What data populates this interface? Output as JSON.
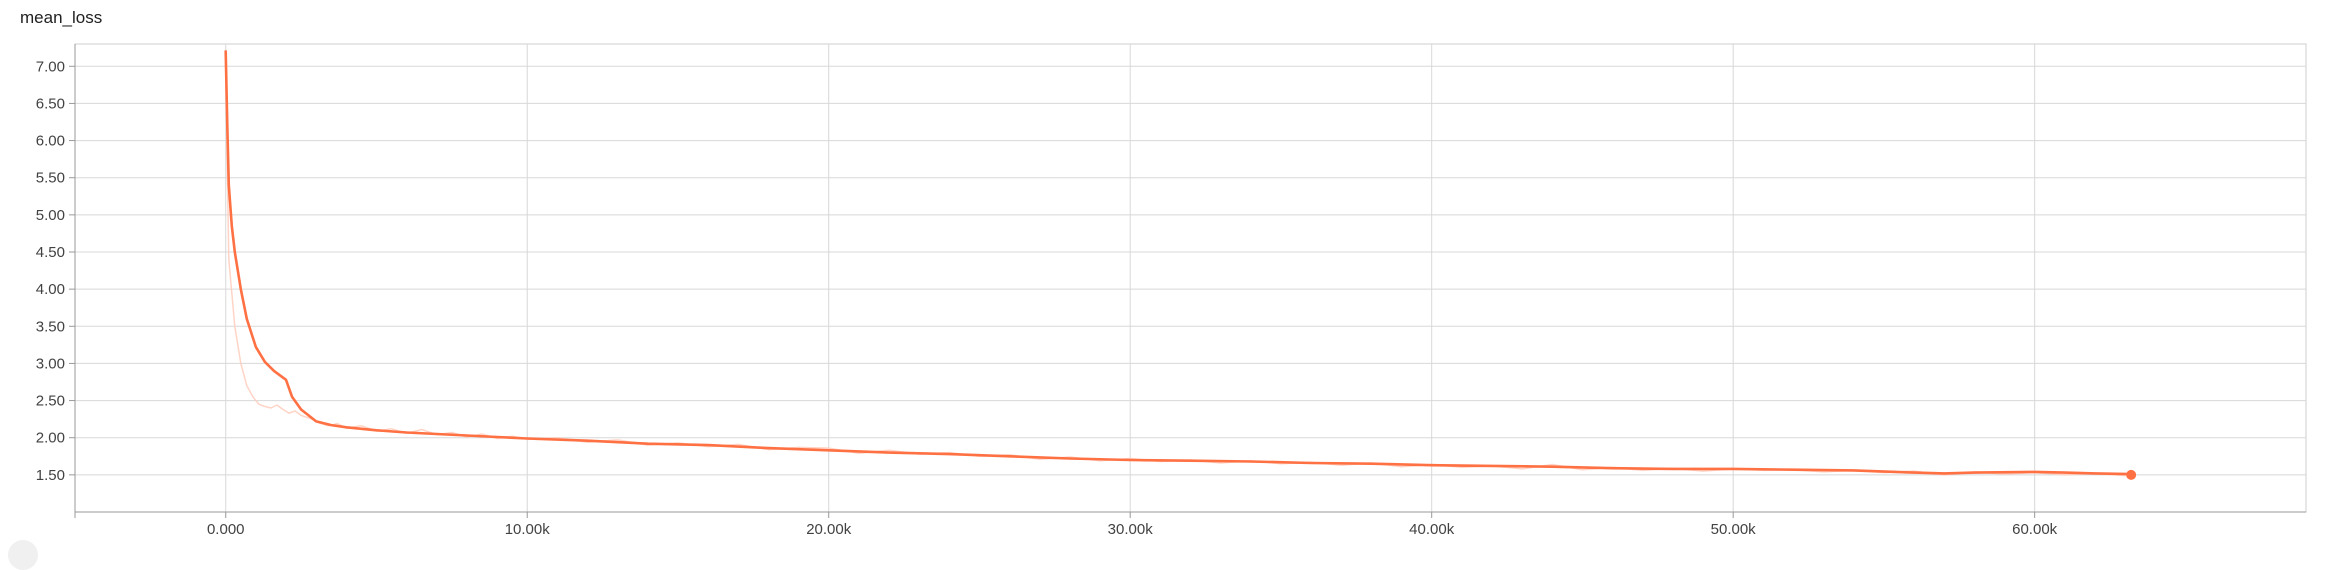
{
  "chart_data": {
    "type": "line",
    "title": "mean_loss",
    "xlabel": "",
    "ylabel": "",
    "xlim": [
      -5000,
      69000
    ],
    "ylim": [
      1.0,
      7.3
    ],
    "x_ticks": [
      0,
      10000,
      20000,
      30000,
      40000,
      50000,
      60000
    ],
    "x_tick_labels": [
      "0.000",
      "10.00k",
      "20.00k",
      "30.00k",
      "40.00k",
      "50.00k",
      "60.00k"
    ],
    "y_ticks": [
      1.5,
      2.0,
      2.5,
      3.0,
      3.5,
      4.0,
      4.5,
      5.0,
      5.5,
      6.0,
      6.5,
      7.0
    ],
    "y_tick_labels": [
      "1.50",
      "2.00",
      "2.50",
      "3.00",
      "3.50",
      "4.00",
      "4.50",
      "5.00",
      "5.50",
      "6.00",
      "6.50",
      "7.00"
    ],
    "grid": true,
    "legend": "none",
    "series": [
      {
        "style": "smoothed",
        "color": "#ff7043",
        "x": [
          0,
          50,
          100,
          200,
          300,
          500,
          700,
          1000,
          1300,
          1600,
          2000,
          2200,
          2500,
          3000,
          3500,
          4000,
          5000,
          6000,
          7000,
          8000,
          9000,
          10000,
          12000,
          14000,
          16000,
          18000,
          20000,
          22000,
          24000,
          26000,
          28000,
          30000,
          32000,
          34000,
          36000,
          38000,
          40000,
          42000,
          44000,
          46000,
          48000,
          50000,
          52000,
          54000,
          56000,
          57000,
          58000,
          60000,
          61000,
          62000,
          63200
        ],
        "y": [
          7.2,
          6.2,
          5.4,
          4.85,
          4.5,
          4.0,
          3.6,
          3.22,
          3.02,
          2.9,
          2.78,
          2.55,
          2.38,
          2.22,
          2.17,
          2.14,
          2.1,
          2.07,
          2.05,
          2.03,
          2.01,
          1.99,
          1.96,
          1.92,
          1.9,
          1.86,
          1.83,
          1.8,
          1.78,
          1.75,
          1.72,
          1.7,
          1.69,
          1.68,
          1.66,
          1.65,
          1.63,
          1.62,
          1.61,
          1.59,
          1.58,
          1.58,
          1.57,
          1.56,
          1.53,
          1.52,
          1.53,
          1.54,
          1.53,
          1.52,
          1.51
        ]
      },
      {
        "style": "raw",
        "color": "#ffccbc",
        "x": [
          0,
          100,
          300,
          500,
          700,
          900,
          1100,
          1300,
          1500,
          1700,
          1900,
          2100,
          2300,
          2500,
          2800,
          3100,
          3400,
          3700,
          4000,
          4500,
          5000,
          5500,
          6000,
          6500,
          7000,
          7500,
          8000,
          8500,
          9000,
          9500,
          10000,
          11000,
          12000,
          13000,
          14000,
          15000,
          16000,
          17000,
          18000,
          19000,
          20000,
          21000,
          22000,
          23000,
          24000,
          25000,
          26000,
          27000,
          28000,
          29000,
          30000,
          31000,
          32000,
          33000,
          34000,
          35000,
          36000,
          37000,
          38000,
          39000,
          40000,
          41000,
          42000,
          43000,
          44000,
          45000,
          46000,
          47000,
          48000,
          49000,
          50000,
          51000,
          52000,
          53000,
          54000,
          55000,
          56000,
          57000,
          58000,
          59000,
          60000,
          61000,
          62000,
          63000
        ],
        "y": [
          7.0,
          4.4,
          3.5,
          3.0,
          2.7,
          2.55,
          2.45,
          2.42,
          2.4,
          2.44,
          2.38,
          2.33,
          2.36,
          2.3,
          2.26,
          2.2,
          2.16,
          2.19,
          2.13,
          2.16,
          2.09,
          2.12,
          2.06,
          2.11,
          2.04,
          2.07,
          2.01,
          2.05,
          1.99,
          2.02,
          1.98,
          2.0,
          1.94,
          1.97,
          1.9,
          1.93,
          1.88,
          1.91,
          1.84,
          1.87,
          1.86,
          1.79,
          1.83,
          1.78,
          1.8,
          1.75,
          1.77,
          1.71,
          1.74,
          1.69,
          1.72,
          1.68,
          1.7,
          1.66,
          1.69,
          1.65,
          1.67,
          1.63,
          1.66,
          1.61,
          1.64,
          1.6,
          1.62,
          1.58,
          1.64,
          1.57,
          1.6,
          1.56,
          1.59,
          1.55,
          1.58,
          1.56,
          1.57,
          1.54,
          1.56,
          1.53,
          1.55,
          1.5,
          1.54,
          1.51,
          1.53,
          1.5,
          1.52,
          1.49
        ]
      }
    ],
    "last_point": {
      "x": 63200,
      "y": 1.5,
      "color": "#ff7043"
    }
  }
}
